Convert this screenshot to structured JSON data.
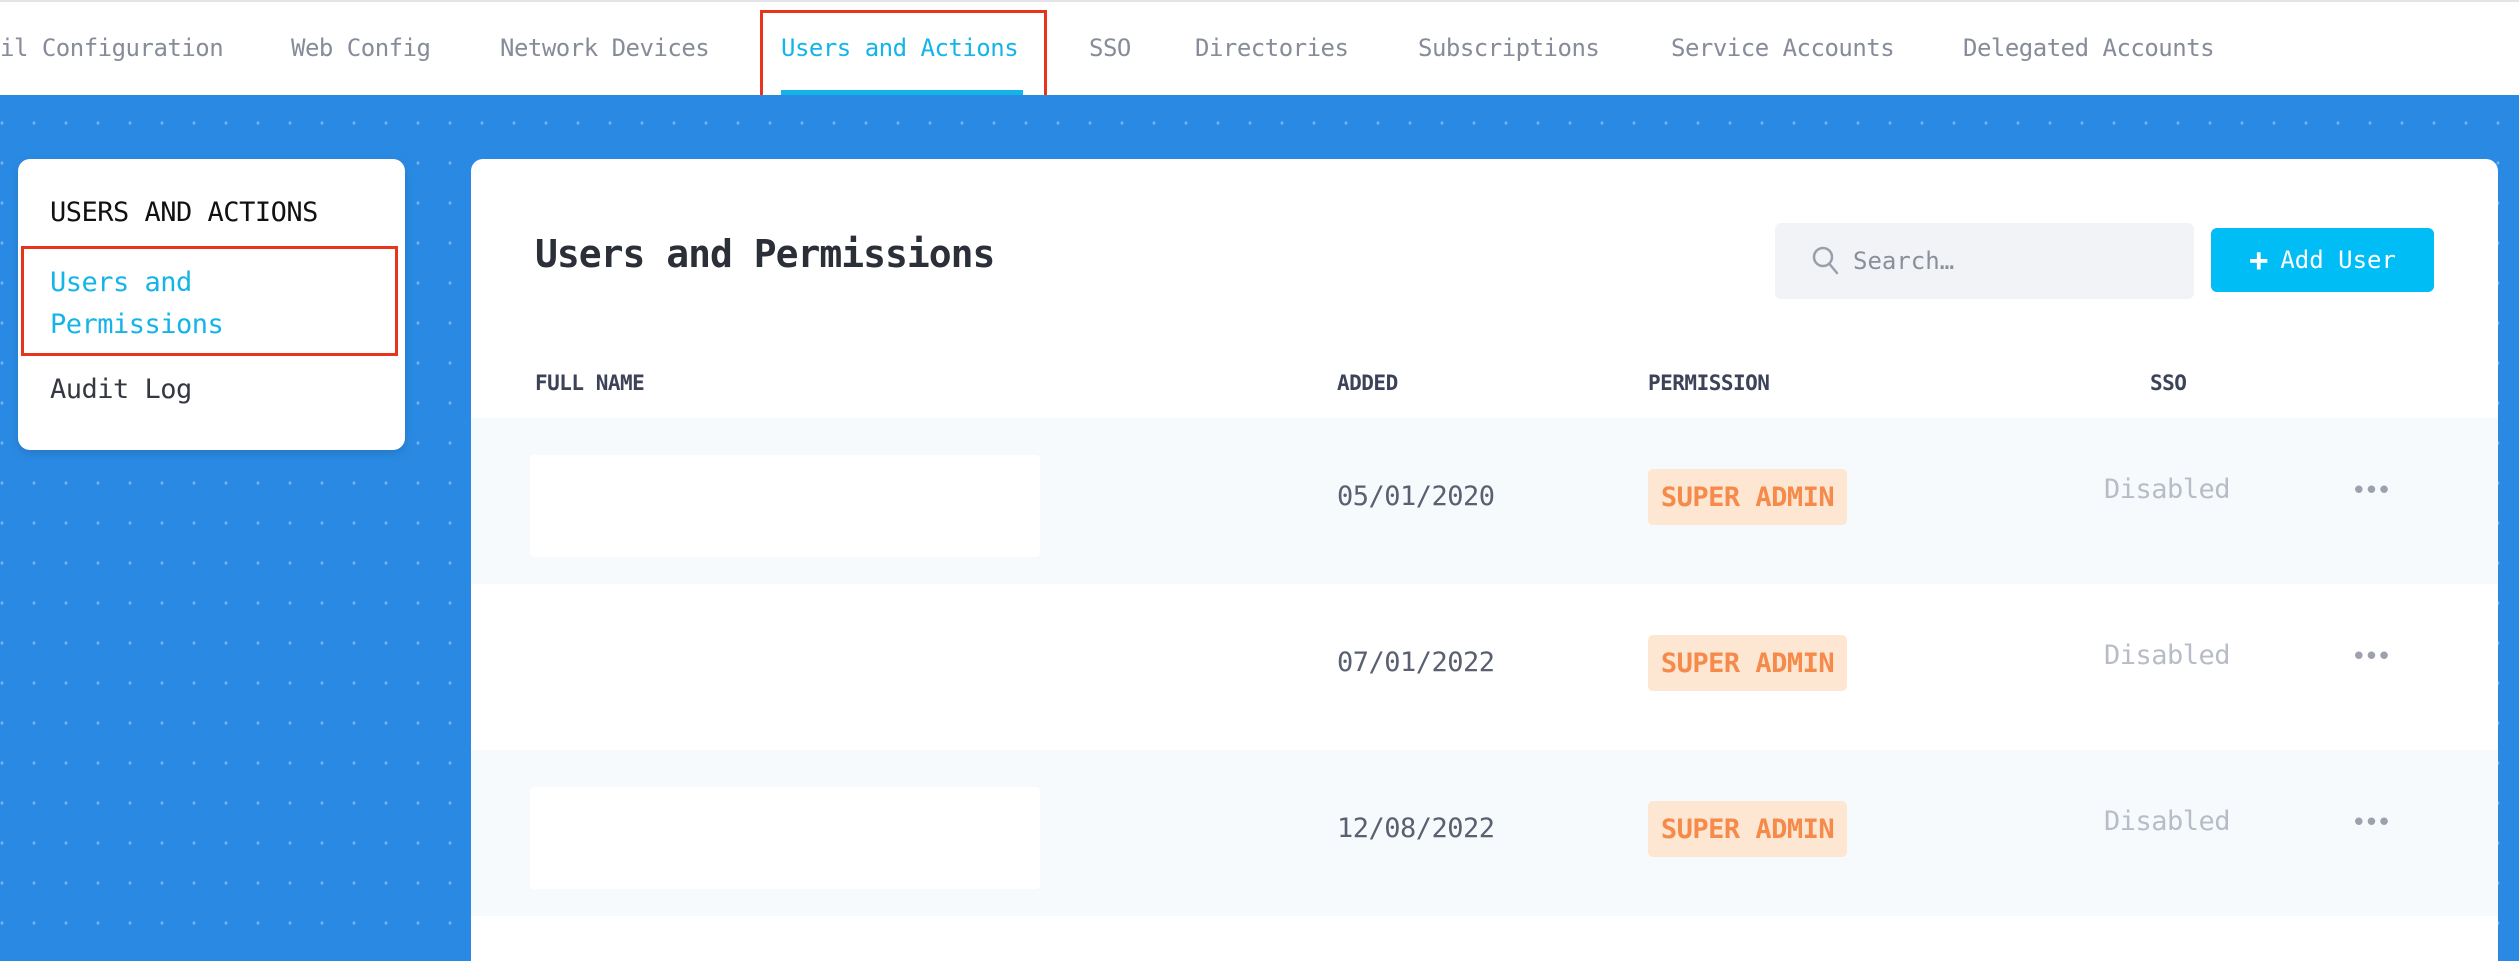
{
  "topnav": {
    "tabs": [
      {
        "label": "il Configuration"
      },
      {
        "label": "Web Config"
      },
      {
        "label": "Network Devices"
      },
      {
        "label": "Users and Actions",
        "active": true
      },
      {
        "label": "SSO"
      },
      {
        "label": "Directories"
      },
      {
        "label": "Subscriptions"
      },
      {
        "label": "Service Accounts"
      },
      {
        "label": "Delegated Accounts"
      }
    ]
  },
  "sidebar": {
    "title": "USERS AND ACTIONS",
    "items": [
      {
        "label_line1": "Users and",
        "label_line2": "Permissions",
        "active": true
      },
      {
        "label": "Audit Log"
      }
    ]
  },
  "main": {
    "title": "Users and Permissions",
    "search": {
      "placeholder": "Search…",
      "value": ""
    },
    "add_button": {
      "icon": "+",
      "label": "Add User"
    },
    "columns": [
      "FULL NAME",
      "ADDED",
      "PERMISSION",
      "SSO"
    ],
    "rows": [
      {
        "added": "05/01/2020",
        "permission": "SUPER ADMIN",
        "sso": "Disabled",
        "more": "•••"
      },
      {
        "added": "07/01/2022",
        "permission": "SUPER ADMIN",
        "sso": "Disabled",
        "more": "•••"
      },
      {
        "added": "12/08/2022",
        "permission": "SUPER ADMIN",
        "sso": "Disabled",
        "more": "•••"
      }
    ]
  },
  "colors": {
    "accent": "#14b4e8",
    "button": "#00bdf5",
    "background": "#2a8ae3",
    "badge_bg": "#fde7d2",
    "badge_text": "#f58a4b",
    "highlight_box": "#e8341c"
  }
}
